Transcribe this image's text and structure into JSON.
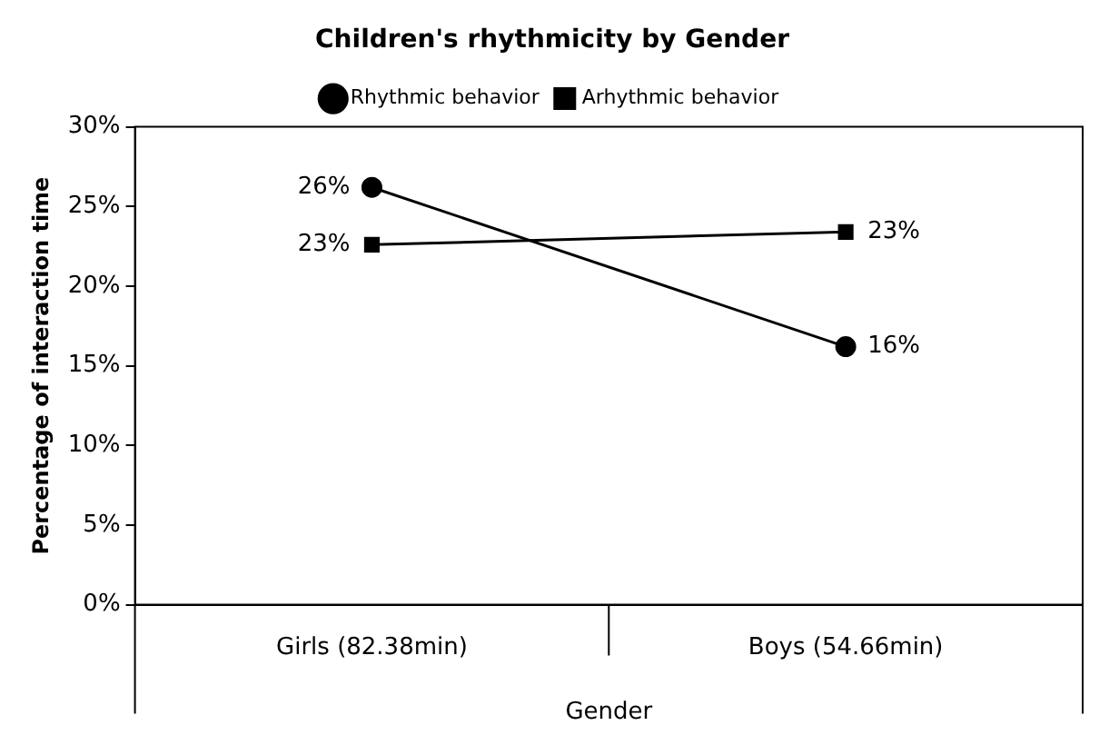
{
  "chart_data": {
    "type": "line",
    "title": "Children's rhythmicity by Gender",
    "xlabel": "Gender",
    "ylabel": "Percentage of interaction time",
    "categories": [
      "Girls (82.38min)",
      "Boys (54.66min)"
    ],
    "series": [
      {
        "name": "Rhythmic behavior",
        "color": "#000000",
        "marker": "circle",
        "values": [
          26.2,
          16.2
        ],
        "value_labels": [
          "26%",
          "16%"
        ]
      },
      {
        "name": "Arhythmic behavior",
        "color": "#000000",
        "marker": "square",
        "values": [
          22.6,
          23.4
        ],
        "value_labels": [
          "23%",
          "23%"
        ]
      }
    ],
    "ylim": [
      0,
      30
    ],
    "yticks": [
      {
        "value": 0,
        "label": "0%"
      },
      {
        "value": 5,
        "label": "5%"
      },
      {
        "value": 10,
        "label": "10%"
      },
      {
        "value": 15,
        "label": "15%"
      },
      {
        "value": 20,
        "label": "20%"
      },
      {
        "value": 25,
        "label": "25%"
      },
      {
        "value": 30,
        "label": "30%"
      }
    ],
    "grid": false,
    "legend": "top",
    "line_style": "solid"
  }
}
